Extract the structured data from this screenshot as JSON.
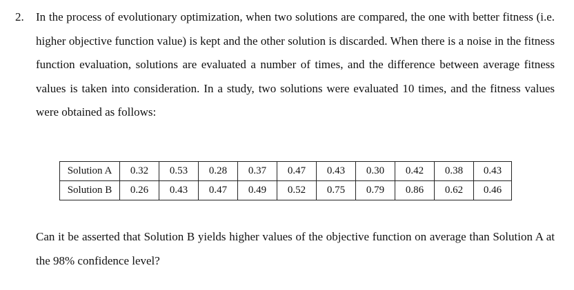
{
  "problem": {
    "number": "2.",
    "intro": "In the process of evolutionary optimization, when two solutions are compared, the one with better fitness (i.e. higher objective function value) is kept and the other solution is discarded. When there is a noise in the fitness function evaluation, solutions are evaluated a number of times, and the difference between average fitness values is taken into consideration. In a study, two solutions were evaluated 10 times, and the fitness values were obtained as follows:",
    "question": "Can it be asserted that Solution B yields higher values of the objective function on average than Solution A at the 98% confidence level?"
  },
  "table": {
    "rows": [
      {
        "label": "Solution A",
        "values": [
          "0.32",
          "0.53",
          "0.28",
          "0.37",
          "0.47",
          "0.43",
          "0.30",
          "0.42",
          "0.38",
          "0.43"
        ]
      },
      {
        "label": "Solution B",
        "values": [
          "0.26",
          "0.43",
          "0.47",
          "0.49",
          "0.52",
          "0.75",
          "0.79",
          "0.86",
          "0.62",
          "0.46"
        ]
      }
    ]
  }
}
